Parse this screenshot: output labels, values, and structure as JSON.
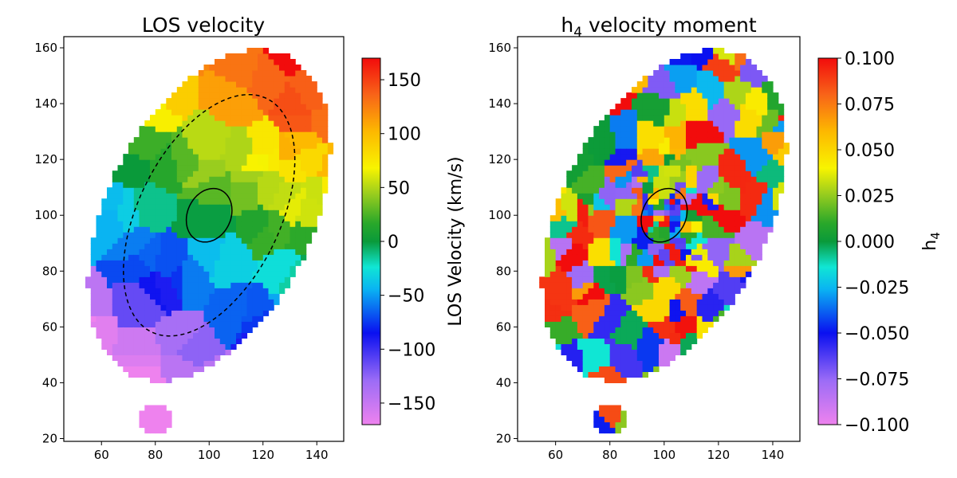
{
  "chart_data": [
    {
      "type": "heatmap",
      "title": "LOS velocity",
      "xlabel": "",
      "ylabel": "",
      "xlim": [
        46,
        150
      ],
      "ylim": [
        19,
        164
      ],
      "x_ticks": [
        60,
        80,
        100,
        120,
        140
      ],
      "y_ticks": [
        20,
        40,
        60,
        80,
        100,
        120,
        140,
        160
      ],
      "colorbar": {
        "label": "LOS Velocity (km/s)",
        "range": [
          -170,
          170
        ],
        "ticks": [
          150,
          100,
          50,
          0,
          -50,
          -100,
          -150
        ],
        "tick_labels": [
          "150",
          "100",
          "50",
          "0",
          "−50",
          "−100",
          "−150"
        ]
      },
      "field": {
        "description_of_values": "velocity gradient along minor axis; positive (red) at top-north, negative (violet) at bottom",
        "center": [
          100,
          100
        ],
        "top_value": 165,
        "bottom_value": -165
      },
      "ellipses": [
        {
          "center": [
            100,
            100
          ],
          "semi_axis_a": 26,
          "semi_axis_b": 47,
          "angle_deg": -28,
          "style": "dashed"
        },
        {
          "center": [
            100,
            100
          ],
          "semi_axis_a": 8,
          "semi_axis_b": 10,
          "angle_deg": -28,
          "style": "solid"
        }
      ]
    },
    {
      "type": "heatmap",
      "title_base": "h",
      "title_sub": "4",
      "title_rest": " velocity moment",
      "xlabel": "",
      "ylabel": "",
      "xlim": [
        46,
        150
      ],
      "ylim": [
        19,
        164
      ],
      "x_ticks": [
        60,
        80,
        100,
        120,
        140
      ],
      "y_ticks": [
        20,
        40,
        60,
        80,
        100,
        120,
        140,
        160
      ],
      "colorbar": {
        "label_base": "h",
        "label_sub": "4",
        "range": [
          -0.1,
          0.1
        ],
        "ticks": [
          0.1,
          0.075,
          0.05,
          0.025,
          0.0,
          -0.025,
          -0.05,
          -0.075,
          -0.1
        ],
        "tick_labels": [
          "0.100",
          "0.075",
          "0.050",
          "0.025",
          "0.000",
          "−0.025",
          "−0.050",
          "−0.075",
          "−0.100"
        ]
      },
      "field": {
        "description_of_values": "patchy Voronoi bins with mixed positive and negative h4, mean slightly positive",
        "center": [
          100,
          100
        ]
      },
      "ellipses": [
        {
          "center": [
            100,
            100
          ],
          "semi_axis_a": 8,
          "semi_axis_b": 10,
          "angle_deg": -28,
          "style": "solid"
        }
      ]
    }
  ]
}
